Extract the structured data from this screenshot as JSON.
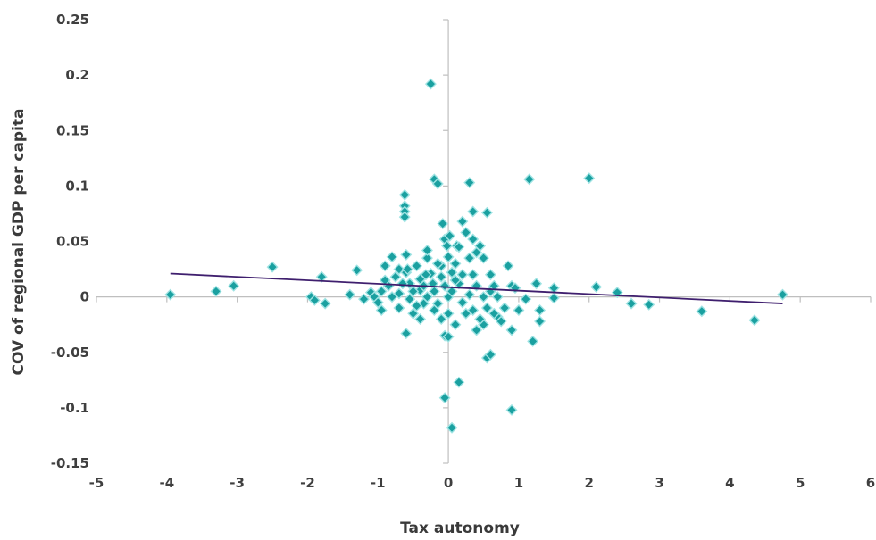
{
  "chart_data": {
    "type": "scatter",
    "title": "",
    "xlabel": "Tax autonomy",
    "ylabel": "COV of regional GDP per capita",
    "xlim": [
      -5,
      6
    ],
    "ylim": [
      -0.15,
      0.25
    ],
    "xticks": [
      -5,
      -4,
      -3,
      -2,
      -1,
      0,
      1,
      2,
      3,
      4,
      5,
      6
    ],
    "xtick_labels": [
      "-5",
      "-4",
      "-3",
      "-2",
      "-1",
      "0",
      "1",
      "2",
      "3",
      "4",
      "5",
      "6"
    ],
    "yticks": [
      -0.15,
      -0.1,
      -0.05,
      0,
      0.05,
      0.1,
      0.15,
      0.2,
      0.25
    ],
    "ytick_labels": [
      "-0.15",
      "-0.1",
      "-0.05",
      "0",
      "0.05",
      "0.1",
      "0.15",
      "0.2",
      "0.25"
    ],
    "grid": false,
    "legend": "none",
    "marker_color": "#1aa0a0",
    "trend_color": "#3f1f6e",
    "trendline": {
      "x": [
        -3.95,
        4.75
      ],
      "y": [
        0.021,
        -0.006
      ]
    },
    "series": [
      {
        "points": [
          [
            -3.95,
            0.002
          ],
          [
            -3.3,
            0.005
          ],
          [
            -3.05,
            0.01
          ],
          [
            -2.5,
            0.027
          ],
          [
            -1.95,
            0.0
          ],
          [
            -1.8,
            0.018
          ],
          [
            -1.75,
            -0.006
          ],
          [
            -1.9,
            -0.003
          ],
          [
            -1.3,
            0.024
          ],
          [
            -1.1,
            0.004
          ],
          [
            -1.05,
            0.0
          ],
          [
            -0.95,
            0.005
          ],
          [
            -0.85,
            0.01
          ],
          [
            -0.9,
            0.028
          ],
          [
            -0.8,
            0.036
          ],
          [
            -0.75,
            0.018
          ],
          [
            -0.7,
            0.003
          ],
          [
            -0.7,
            -0.01
          ],
          [
            -0.62,
            0.092
          ],
          [
            -0.62,
            0.082
          ],
          [
            -0.62,
            0.077
          ],
          [
            -0.62,
            0.072
          ],
          [
            -0.6,
            0.038
          ],
          [
            -0.6,
            0.022
          ],
          [
            -0.55,
            0.012
          ],
          [
            -0.55,
            -0.002
          ],
          [
            -0.6,
            -0.033
          ],
          [
            -0.5,
            -0.015
          ],
          [
            -0.45,
            0.028
          ],
          [
            -0.4,
            0.016
          ],
          [
            -0.4,
            0.006
          ],
          [
            -0.35,
            -0.006
          ],
          [
            -0.3,
            0.035
          ],
          [
            -0.3,
            0.042
          ],
          [
            -0.25,
            0.021
          ],
          [
            -0.22,
            0.012
          ],
          [
            -0.25,
            0.192
          ],
          [
            -0.2,
            0.106
          ],
          [
            -0.15,
            0.102
          ],
          [
            -0.15,
            -0.006
          ],
          [
            -0.1,
            0.018
          ],
          [
            -0.1,
            0.028
          ],
          [
            -0.08,
            0.066
          ],
          [
            -0.05,
            0.052
          ],
          [
            -0.02,
            0.046
          ],
          [
            0.0,
            0.036
          ],
          [
            -0.05,
            -0.035
          ],
          [
            0.0,
            -0.036
          ],
          [
            -0.05,
            -0.091
          ],
          [
            0.05,
            -0.118
          ],
          [
            0.15,
            -0.077
          ],
          [
            0.05,
            0.022
          ],
          [
            0.1,
            0.03
          ],
          [
            0.12,
            0.046
          ],
          [
            0.15,
            0.012
          ],
          [
            0.2,
            0.068
          ],
          [
            0.25,
            0.058
          ],
          [
            0.3,
            0.103
          ],
          [
            0.35,
            0.077
          ],
          [
            0.35,
            0.052
          ],
          [
            0.4,
            0.04
          ],
          [
            0.45,
            0.046
          ],
          [
            0.5,
            0.035
          ],
          [
            0.55,
            0.076
          ],
          [
            0.3,
            0.002
          ],
          [
            0.35,
            -0.012
          ],
          [
            0.4,
            -0.03
          ],
          [
            0.5,
            -0.025
          ],
          [
            0.55,
            -0.055
          ],
          [
            0.6,
            -0.052
          ],
          [
            0.7,
            -0.018
          ],
          [
            0.8,
            -0.01
          ],
          [
            0.85,
            0.028
          ],
          [
            0.9,
            0.01
          ],
          [
            0.95,
            0.008
          ],
          [
            1.0,
            -0.012
          ],
          [
            0.9,
            -0.03
          ],
          [
            0.9,
            -0.102
          ],
          [
            1.1,
            -0.002
          ],
          [
            1.15,
            0.106
          ],
          [
            1.2,
            -0.04
          ],
          [
            1.25,
            0.012
          ],
          [
            1.3,
            -0.012
          ],
          [
            1.3,
            -0.022
          ],
          [
            1.5,
            0.008
          ],
          [
            1.5,
            -0.001
          ],
          [
            2.0,
            0.107
          ],
          [
            2.1,
            0.009
          ],
          [
            2.4,
            0.004
          ],
          [
            2.6,
            -0.006
          ],
          [
            2.85,
            -0.007
          ],
          [
            3.6,
            -0.013
          ],
          [
            4.35,
            -0.021
          ],
          [
            4.75,
            0.002
          ],
          [
            -0.9,
            0.015
          ],
          [
            -0.8,
            0.0
          ],
          [
            -0.7,
            0.025
          ],
          [
            -0.65,
            0.012
          ],
          [
            -0.5,
            0.005
          ],
          [
            -0.45,
            -0.008
          ],
          [
            -0.35,
            0.01
          ],
          [
            -0.3,
            0.0
          ],
          [
            -0.2,
            -0.012
          ],
          [
            -0.2,
            0.005
          ],
          [
            -0.15,
            0.03
          ],
          [
            -0.1,
            -0.02
          ],
          [
            -0.05,
            0.01
          ],
          [
            0.0,
            0.0
          ],
          [
            0.0,
            -0.015
          ],
          [
            0.05,
            0.005
          ],
          [
            0.1,
            -0.025
          ],
          [
            0.1,
            0.015
          ],
          [
            0.2,
            -0.005
          ],
          [
            0.2,
            0.02
          ],
          [
            0.25,
            -0.015
          ],
          [
            0.3,
            0.035
          ],
          [
            0.4,
            0.01
          ],
          [
            0.45,
            -0.02
          ],
          [
            0.5,
            0.0
          ],
          [
            0.55,
            -0.01
          ],
          [
            0.6,
            0.005
          ],
          [
            0.65,
            -0.015
          ],
          [
            0.7,
            0.0
          ],
          [
            0.75,
            -0.022
          ],
          [
            -1.0,
            -0.005
          ],
          [
            -1.2,
            -0.002
          ],
          [
            -1.4,
            0.002
          ],
          [
            -0.95,
            -0.012
          ],
          [
            -0.4,
            -0.02
          ],
          [
            0.15,
            0.045
          ],
          [
            0.35,
            0.02
          ],
          [
            0.6,
            0.02
          ],
          [
            0.65,
            0.01
          ],
          [
            -0.58,
            0.025
          ],
          [
            -0.32,
            0.02
          ],
          [
            0.02,
            0.055
          ]
        ]
      }
    ]
  }
}
